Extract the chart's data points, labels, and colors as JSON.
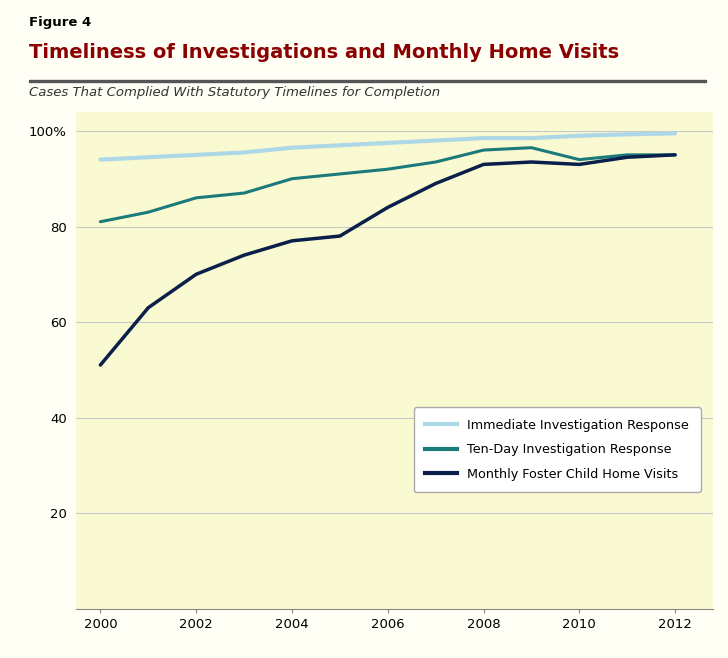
{
  "figure_label": "Figure 4",
  "title": "Timeliness of Investigations and Monthly Home Visits",
  "subtitle": "Cases That Complied With Statutory Timelines for Completion",
  "fig_bg_color": "#FFFFF5",
  "plot_bg_color": "#FAFAD2",
  "title_color": "#8B0000",
  "figure_label_color": "#000000",
  "subtitle_color": "#333333",
  "grid_color": "#C8C8C8",
  "years": [
    2000,
    2001,
    2002,
    2003,
    2004,
    2005,
    2006,
    2007,
    2008,
    2009,
    2010,
    2011,
    2012
  ],
  "immediate_investigation": [
    94,
    94.5,
    95,
    95.5,
    96.5,
    97,
    97.5,
    98,
    98.5,
    98.5,
    99,
    99.3,
    99.5
  ],
  "tenday_investigation": [
    81,
    83,
    86,
    87,
    90,
    91,
    92,
    93.5,
    96,
    96.5,
    94,
    95,
    95
  ],
  "monthly_home_visits": [
    51,
    63,
    70,
    74,
    77,
    78,
    84,
    89,
    93,
    93.5,
    93,
    94.5,
    95
  ],
  "immediate_color": "#ADD8E6",
  "tenday_color": "#1B7A7A",
  "monthly_color": "#0A1F4A",
  "ylim": [
    0,
    104
  ],
  "yticks": [
    20,
    40,
    60,
    80,
    100
  ],
  "ytick_labels": [
    "20",
    "40",
    "60",
    "80",
    "100%"
  ],
  "xlim": [
    1999.5,
    2012.8
  ],
  "xticks": [
    2000,
    2002,
    2004,
    2006,
    2008,
    2010,
    2012
  ],
  "line_width": 2.2,
  "legend_entries": [
    "Immediate Investigation Response",
    "Ten-Day Investigation Response",
    "Monthly Foster Child Home Visits"
  ]
}
